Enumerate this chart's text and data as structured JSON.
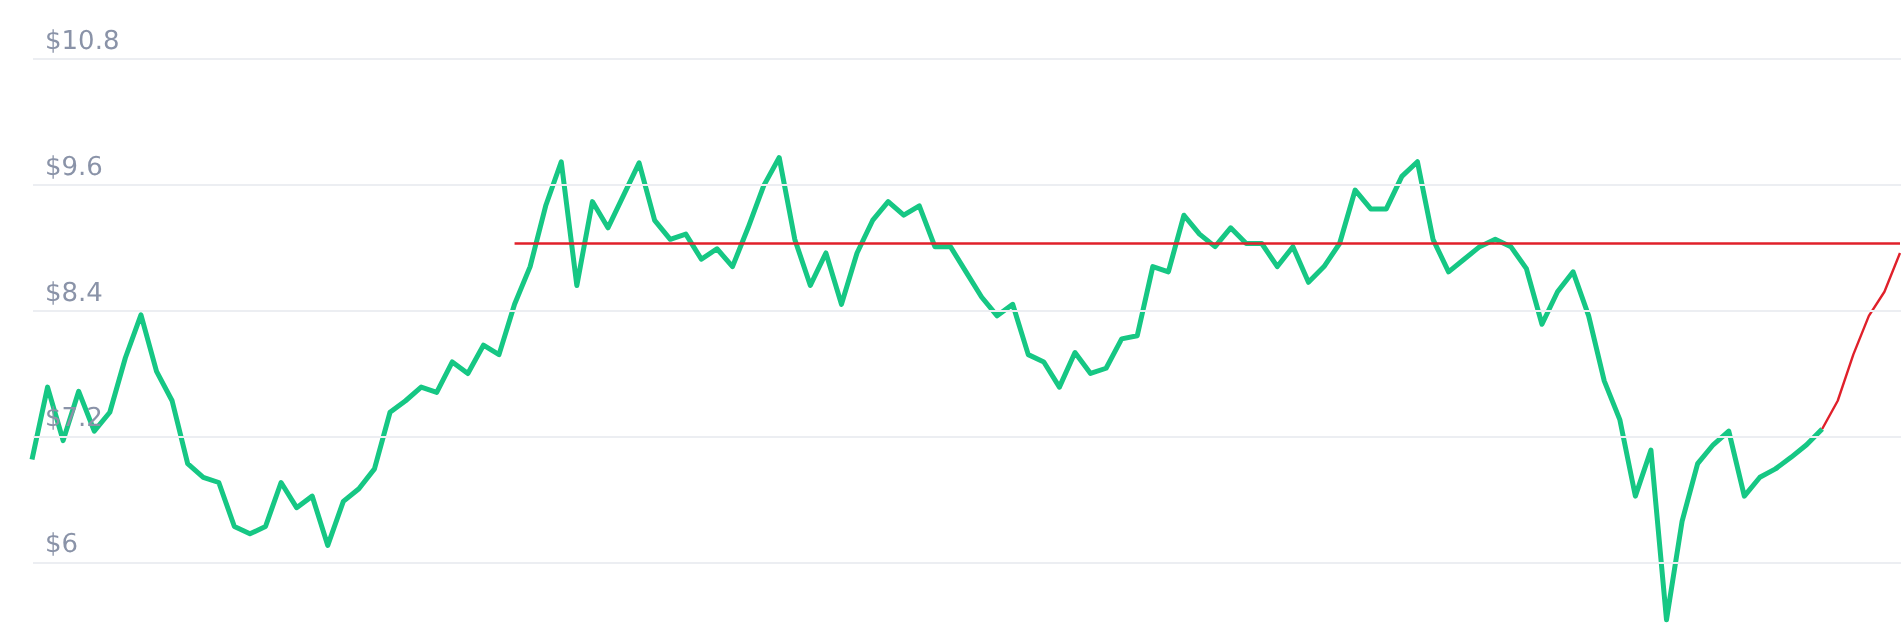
{
  "chart_data": {
    "type": "line",
    "categories": [
      null,
      null,
      null,
      null,
      null,
      null,
      null,
      null,
      null,
      null,
      null,
      null,
      null,
      null,
      null,
      null,
      null,
      null,
      null,
      null,
      null,
      null,
      null,
      null,
      null,
      null,
      null,
      null,
      null,
      null,
      null,
      null,
      null,
      null,
      null,
      null,
      null,
      null,
      null,
      null,
      null,
      null,
      null,
      null,
      null,
      null,
      null,
      null,
      null,
      null,
      null,
      null,
      null,
      null,
      null,
      null,
      null,
      null,
      null,
      null,
      null,
      null,
      null,
      null,
      null,
      null,
      null,
      null,
      null,
      null,
      null,
      null,
      null,
      null,
      null,
      null,
      null,
      null,
      null,
      null,
      null,
      null,
      null,
      null,
      null,
      null,
      null,
      null,
      null,
      null,
      null,
      null,
      null,
      null,
      null,
      null,
      null,
      null,
      null,
      null,
      null,
      null,
      null,
      null,
      null,
      null,
      null,
      null,
      null,
      null,
      null,
      null,
      null,
      null,
      null,
      null,
      null,
      null,
      null,
      null,
      null
    ],
    "series": [
      {
        "color": "#16c784",
        "values": [
          6.97,
          7.66,
          7.15,
          7.62,
          7.24,
          7.42,
          7.94,
          8.35,
          7.81,
          7.53,
          6.93,
          6.8,
          6.75,
          6.33,
          6.26,
          6.33,
          6.75,
          6.51,
          6.62,
          6.15,
          6.57,
          6.69,
          6.88,
          7.42,
          7.53,
          7.66,
          7.61,
          7.9,
          7.79,
          8.06,
          7.97,
          8.45,
          8.81,
          9.39,
          9.81,
          8.63,
          9.43,
          9.18,
          9.49,
          9.8,
          9.25,
          9.07,
          9.12,
          8.88,
          8.98,
          8.81,
          9.18,
          9.58,
          9.85,
          9.07,
          8.63,
          8.94,
          8.45,
          8.94,
          9.25,
          9.43,
          9.3,
          9.39,
          9.0,
          9.0,
          8.76,
          8.52,
          8.34,
          8.45,
          7.97,
          7.9,
          7.66,
          7.99,
          7.79,
          7.84,
          8.12,
          8.15,
          8.81,
          8.76,
          9.3,
          9.12,
          9.0,
          9.18,
          9.03,
          9.03,
          8.81,
          9.0,
          8.66,
          8.81,
          9.03,
          9.54,
          9.36,
          9.36,
          9.67,
          9.81,
          9.07,
          8.76,
          8.88,
          9.0,
          9.07,
          9.0,
          8.79,
          8.26,
          8.57,
          8.76,
          8.34,
          7.72,
          7.35,
          6.62,
          7.06,
          5.44,
          6.38,
          6.93,
          7.11,
          7.24,
          6.62,
          6.8,
          6.88,
          6.99,
          7.11,
          7.26,
          null,
          null,
          null,
          null,
          null
        ]
      },
      {
        "color": "#e0202a",
        "values": [
          null,
          null,
          null,
          null,
          null,
          null,
          null,
          null,
          null,
          null,
          null,
          null,
          null,
          null,
          null,
          null,
          null,
          null,
          null,
          null,
          null,
          null,
          null,
          null,
          null,
          null,
          null,
          null,
          null,
          null,
          null,
          9.03,
          9.03,
          9.03,
          9.03,
          9.03,
          9.03,
          9.03,
          9.03,
          9.03,
          9.03,
          9.03,
          9.03,
          9.03,
          9.03,
          9.03,
          9.03,
          9.03,
          9.03,
          9.03,
          9.03,
          9.03,
          9.03,
          9.03,
          9.03,
          9.03,
          9.03,
          9.03,
          9.03,
          9.03,
          9.03,
          9.03,
          9.03,
          9.03,
          9.03,
          9.03,
          9.03,
          9.03,
          9.03,
          9.03,
          9.03,
          9.03,
          9.03,
          9.03,
          9.03,
          9.03,
          9.03,
          9.03,
          9.03,
          9.03,
          9.03,
          9.03,
          9.03,
          9.03,
          9.03,
          9.03,
          9.03,
          9.03,
          9.03,
          9.03,
          9.03,
          9.03,
          9.03,
          9.03,
          9.03,
          9.03,
          9.03,
          9.03,
          9.03,
          9.03,
          9.03,
          9.03,
          9.03,
          9.03,
          9.03,
          9.03,
          9.03,
          9.03,
          9.03,
          9.03,
          9.03,
          9.03,
          9.03,
          9.03,
          9.03,
          9.03,
          9.03,
          9.03,
          9.03,
          9.03,
          9.03
        ]
      },
      {
        "color": "#e0202a",
        "values": [
          null,
          null,
          null,
          null,
          null,
          null,
          null,
          null,
          null,
          null,
          null,
          null,
          null,
          null,
          null,
          null,
          null,
          null,
          null,
          null,
          null,
          null,
          null,
          null,
          null,
          null,
          null,
          null,
          null,
          null,
          null,
          null,
          null,
          null,
          null,
          null,
          null,
          null,
          null,
          null,
          null,
          null,
          null,
          null,
          null,
          null,
          null,
          null,
          null,
          null,
          null,
          null,
          null,
          null,
          null,
          null,
          null,
          null,
          null,
          null,
          null,
          null,
          null,
          null,
          null,
          null,
          null,
          null,
          null,
          null,
          null,
          null,
          null,
          null,
          null,
          null,
          null,
          null,
          null,
          null,
          null,
          null,
          null,
          null,
          null,
          null,
          null,
          null,
          null,
          null,
          null,
          null,
          null,
          null,
          null,
          null,
          null,
          null,
          null,
          null,
          null,
          null,
          null,
          null,
          null,
          null,
          null,
          null,
          null,
          null,
          null,
          null,
          null,
          null,
          null,
          7.26,
          7.53,
          7.97,
          8.34,
          8.57,
          8.94
        ]
      }
    ],
    "ylim": [
      5.4,
      10.8
    ],
    "yticks": [
      {
        "value": 6,
        "label": "$6"
      },
      {
        "value": 7.2,
        "label": "$7.2"
      },
      {
        "value": 8.4,
        "label": "$8.4"
      },
      {
        "value": 9.6,
        "label": "$9.6"
      },
      {
        "value": 10.8,
        "label": "$10.8"
      }
    ],
    "grid": "y",
    "legend": false,
    "tick_labels": "y",
    "marker": "none",
    "line_style": "solid"
  }
}
